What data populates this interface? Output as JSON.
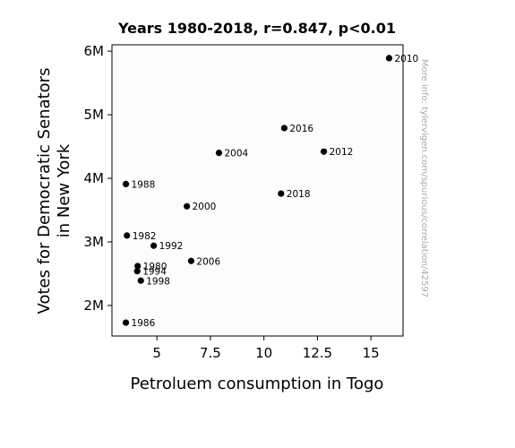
{
  "chart_data": {
    "type": "scatter",
    "title": "Years 1980-2018, r=0.847, p<0.01",
    "xlabel": "Petroluem consumption in Togo",
    "ylabel_lines": [
      "Votes for Democratic Senators",
      "in New York"
    ],
    "xlim": [
      2.9,
      16.5
    ],
    "ylim": [
      1.52,
      6.1
    ],
    "xticks": [
      {
        "value": 5,
        "label": "5"
      },
      {
        "value": 7.5,
        "label": "7.5"
      },
      {
        "value": 10,
        "label": "10"
      },
      {
        "value": 12.5,
        "label": "12.5"
      },
      {
        "value": 15,
        "label": "15"
      }
    ],
    "yticks": [
      {
        "value": 2,
        "label": "2M"
      },
      {
        "value": 3,
        "label": "3M"
      },
      {
        "value": 4,
        "label": "4M"
      },
      {
        "value": 5,
        "label": "5M"
      },
      {
        "value": 6,
        "label": "6M"
      }
    ],
    "y_unit": "millions of votes",
    "points": [
      {
        "label": "1980",
        "x": 4.1,
        "y": 2.62
      },
      {
        "label": "1982",
        "x": 3.6,
        "y": 3.1
      },
      {
        "label": "1986",
        "x": 3.55,
        "y": 1.73
      },
      {
        "label": "1988",
        "x": 3.55,
        "y": 3.91
      },
      {
        "label": "1992",
        "x": 4.85,
        "y": 2.94
      },
      {
        "label": "1994",
        "x": 4.08,
        "y": 2.54
      },
      {
        "label": "1998",
        "x": 4.25,
        "y": 2.39
      },
      {
        "label": "2000",
        "x": 6.4,
        "y": 3.56
      },
      {
        "label": "2004",
        "x": 7.9,
        "y": 4.4
      },
      {
        "label": "2006",
        "x": 6.6,
        "y": 2.7
      },
      {
        "label": "2010",
        "x": 15.85,
        "y": 5.89
      },
      {
        "label": "2012",
        "x": 12.8,
        "y": 4.42
      },
      {
        "label": "2016",
        "x": 10.95,
        "y": 4.79
      },
      {
        "label": "2018",
        "x": 10.8,
        "y": 3.76
      }
    ],
    "marker_color": "#000000",
    "grid": false,
    "watermark": "More info: tylervigen.com/spurious/correlation/42597"
  }
}
